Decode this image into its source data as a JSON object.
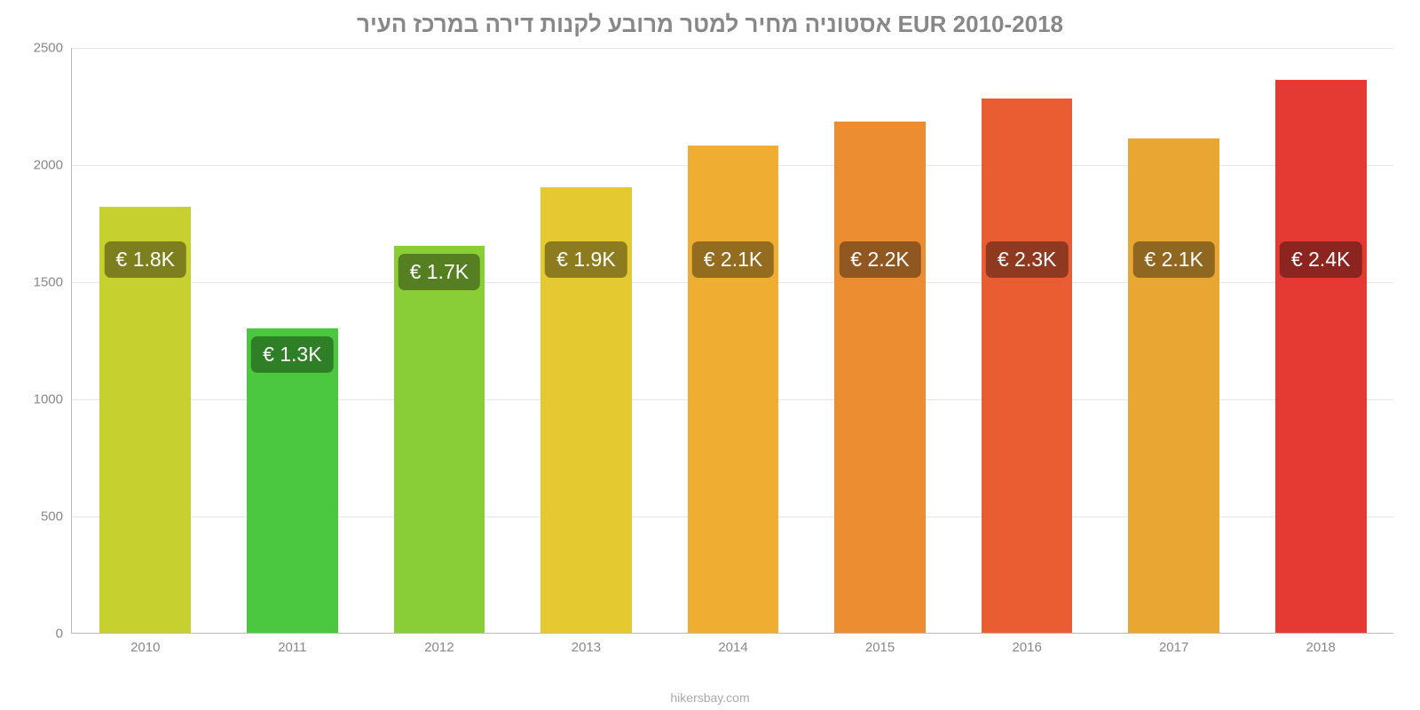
{
  "title": {
    "text": "אסטוניה מחיר למטר מרובע לקנות דירה במרכז העיר EUR 2010-2018",
    "color": "#888888",
    "fontsize": 26
  },
  "footer": "hikersbay.com",
  "chart": {
    "type": "bar",
    "background_color": "#ffffff",
    "grid_color": "#e6e6e6",
    "axis_color": "#bbbbbb",
    "tick_label_color": "#888888",
    "tick_fontsize": 15,
    "ylim": [
      0,
      2500
    ],
    "ytick_step": 500,
    "yticks": [
      0,
      500,
      1000,
      1500,
      2000,
      2500
    ],
    "categories": [
      "2010",
      "2011",
      "2012",
      "2013",
      "2014",
      "2015",
      "2016",
      "2017",
      "2018"
    ],
    "values": [
      1820,
      1300,
      1650,
      1900,
      2080,
      2180,
      2280,
      2110,
      2360
    ],
    "value_labels": [
      "€ 1.8K",
      "€ 1.3K",
      "€ 1.7K",
      "€ 1.9K",
      "€ 2.1K",
      "€ 2.2K",
      "€ 2.3K",
      "€ 2.1K",
      "€ 2.4K"
    ],
    "bar_colors": [
      "#c6d02e",
      "#4bc83f",
      "#8ace37",
      "#e4c931",
      "#efae32",
      "#ec8d32",
      "#ea5c32",
      "#e9a632",
      "#e53a33"
    ],
    "label_bg_colors": [
      "#7d7f1e",
      "#2f7f26",
      "#567f22",
      "#8c7c1f",
      "#936c20",
      "#905721",
      "#8f3a20",
      "#8f6720",
      "#8c2520"
    ],
    "bar_width_ratio": 0.62,
    "label_fontsize": 23,
    "label_color": "#ffffff",
    "label_y_center_from_bottom": 420
  }
}
